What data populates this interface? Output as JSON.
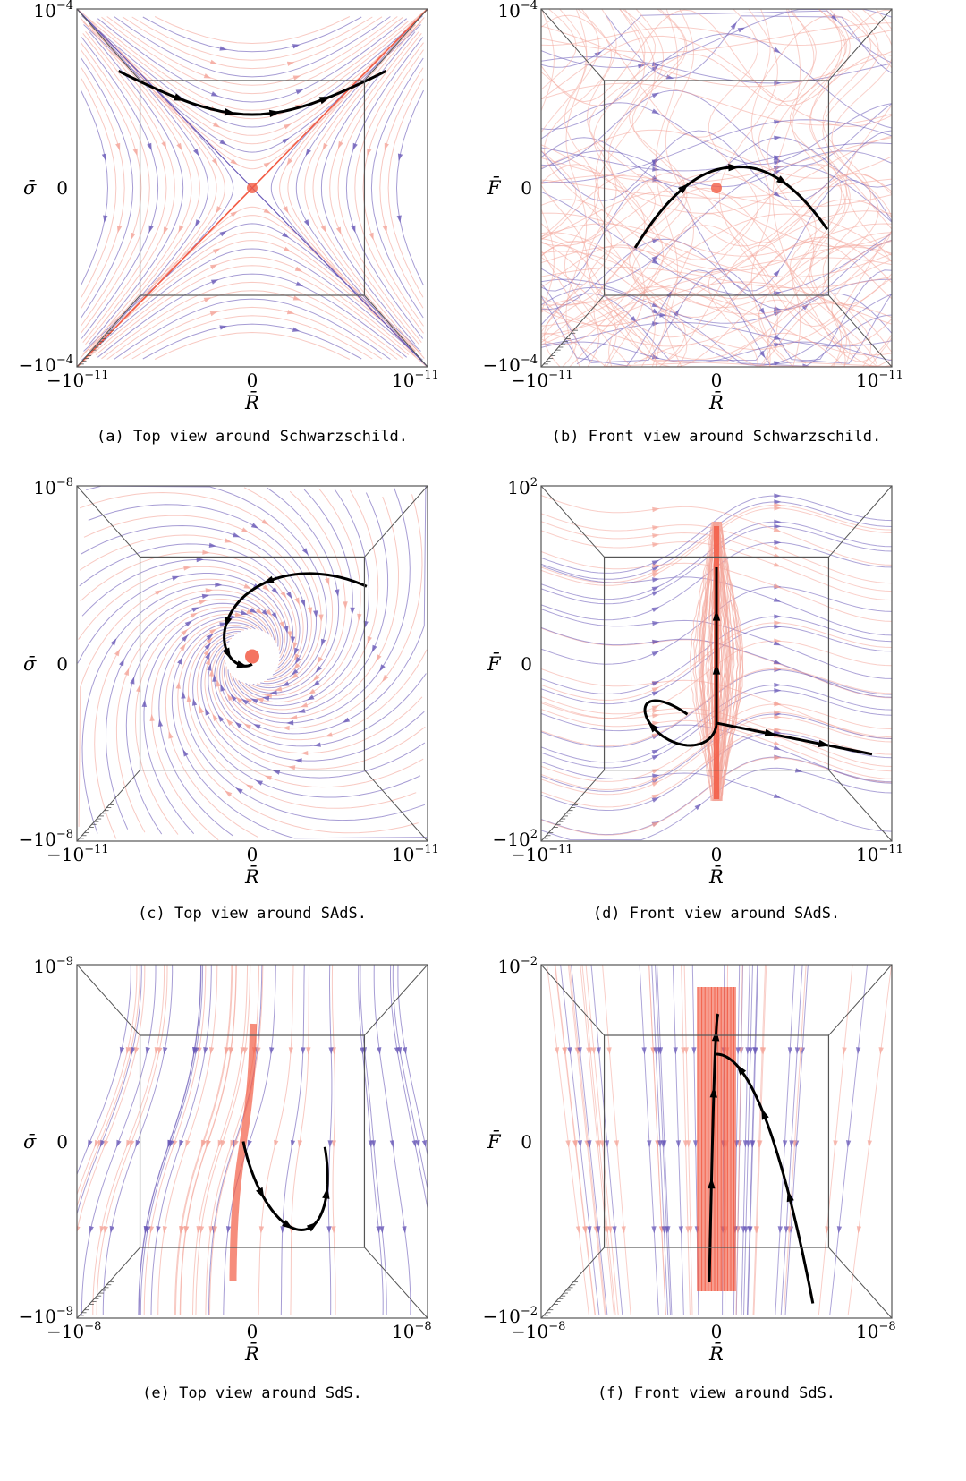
{
  "panels": [
    {
      "id": "a",
      "view": "top",
      "caption": "(a) Top view around Schwarzschild.",
      "xlabel": "R̄",
      "ylabel": "σ̄",
      "xmin": "−10",
      "xmin_exp": "−11",
      "xmax": "10",
      "xmax_exp": "−11",
      "ymin": "−10",
      "ymin_exp": "−4",
      "ymax": "10",
      "ymax_exp": "−4",
      "zero": "0"
    },
    {
      "id": "b",
      "view": "front",
      "caption": "(b) Front view around Schwarzschild.",
      "xlabel": "R̄",
      "ylabel": "F̄",
      "xmin": "−10",
      "xmin_exp": "−11",
      "xmax": "10",
      "xmax_exp": "−11",
      "ymin": "−10",
      "ymin_exp": "−4",
      "ymax": "10",
      "ymax_exp": "−4",
      "zero": "0"
    },
    {
      "id": "c",
      "view": "top",
      "caption": "(c) Top view around SAdS.",
      "xlabel": "R̄",
      "ylabel": "σ̄",
      "xmin": "−10",
      "xmin_exp": "−11",
      "xmax": "10",
      "xmax_exp": "−11",
      "ymin": "−10",
      "ymin_exp": "−8",
      "ymax": "10",
      "ymax_exp": "−8",
      "zero": "0"
    },
    {
      "id": "d",
      "view": "front",
      "caption": "(d) Front view around SAdS.",
      "xlabel": "R̄",
      "ylabel": "F̄",
      "xmin": "−10",
      "xmin_exp": "−11",
      "xmax": "10",
      "xmax_exp": "−11",
      "ymin": "−10",
      "ymin_exp": "2",
      "ymax": "10",
      "ymax_exp": "2",
      "zero": "0"
    },
    {
      "id": "e",
      "view": "top",
      "caption": "(e) Top view around SdS.",
      "xlabel": "R̄",
      "ylabel": "σ̄",
      "xmin": "−10",
      "xmin_exp": "−8",
      "xmax": "10",
      "xmax_exp": "−8",
      "ymin": "−10",
      "ymin_exp": "−9",
      "ymax": "10",
      "ymax_exp": "−9",
      "zero": "0"
    },
    {
      "id": "f",
      "view": "front",
      "caption": "(f) Front view around SdS.",
      "xlabel": "R̄",
      "ylabel": "F̄",
      "xmin": "−10",
      "xmin_exp": "−8",
      "xmax": "10",
      "xmax_exp": "−8",
      "ymin": "−10",
      "ymin_exp": "−2",
      "ymax": "10",
      "ymax_exp": "−2",
      "zero": "0"
    }
  ],
  "colors": {
    "forward": "#6a5ab8",
    "backward": "#f4a59a",
    "core": "#f25c45",
    "trajectory": "#000000",
    "frame": "#555555"
  }
}
